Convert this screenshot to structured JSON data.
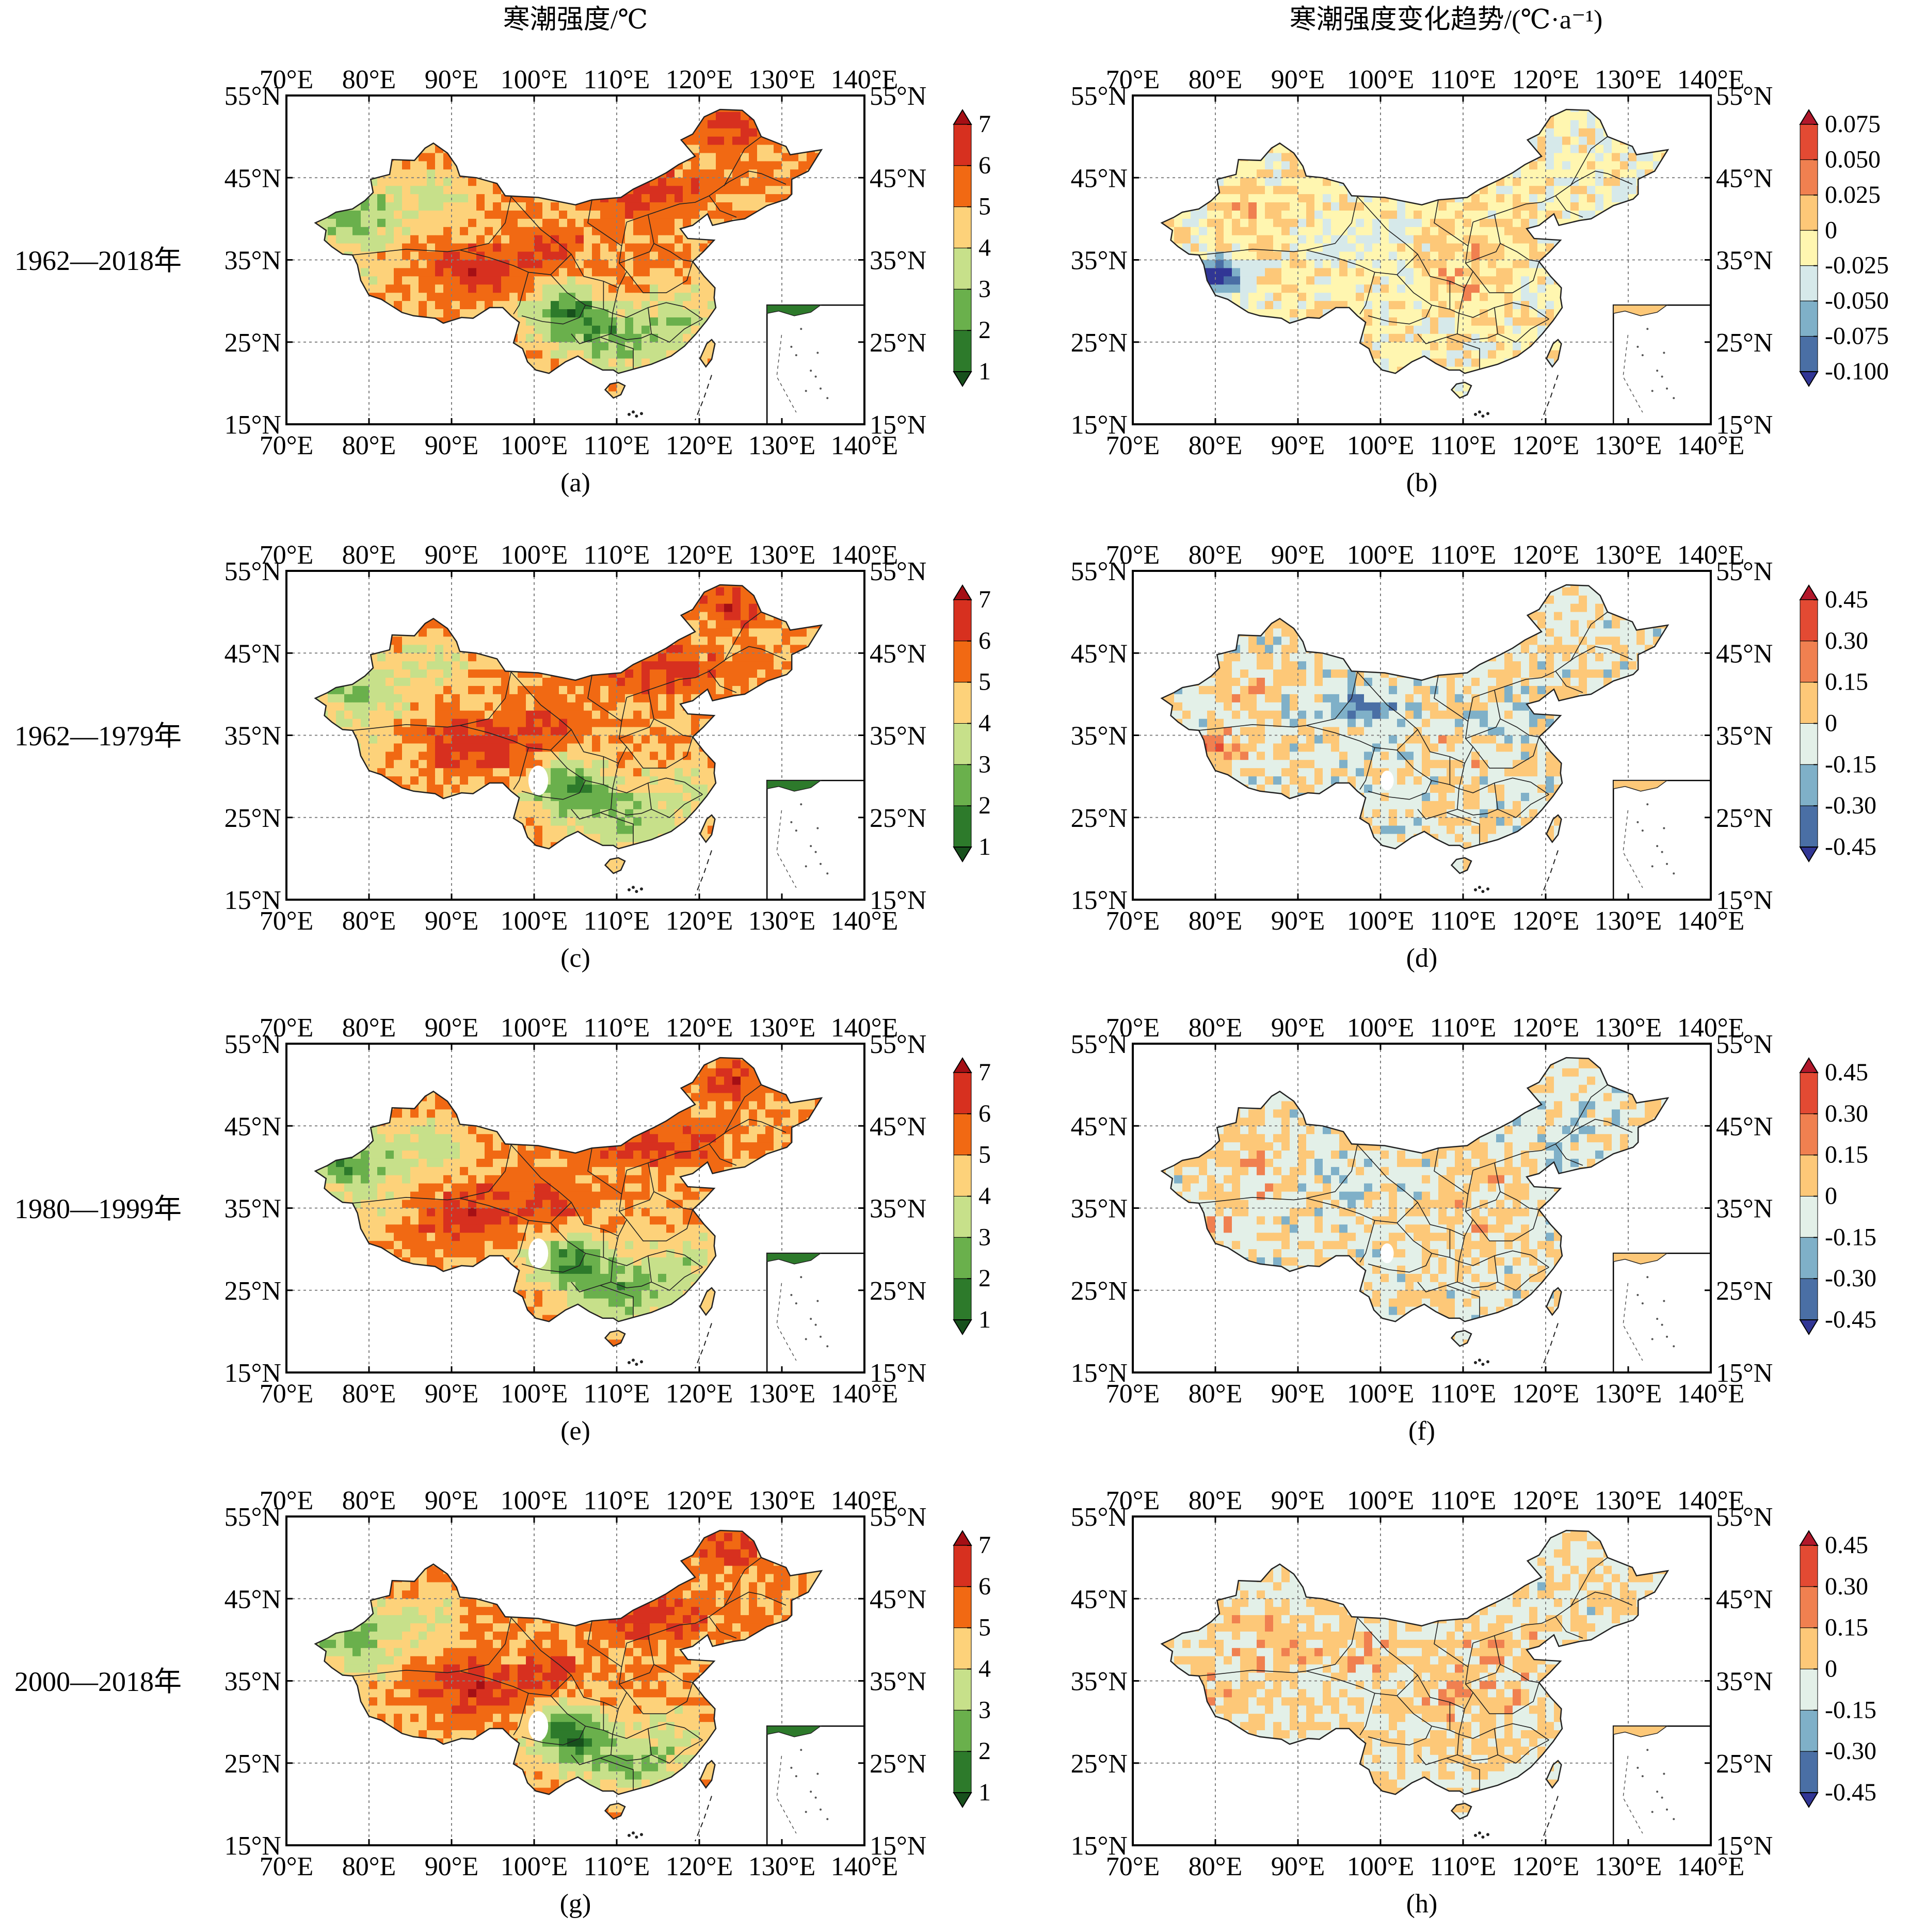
{
  "column_titles": {
    "left": "寒潮强度/℃",
    "right": "寒潮强度变化趋势/(℃·a⁻¹)"
  },
  "lon_labels": [
    "70°E",
    "80°E",
    "90°E",
    "100°E",
    "110°E",
    "120°E",
    "130°E",
    "140°E"
  ],
  "lat_labels": [
    "55°N",
    "45°N",
    "35°N",
    "25°N",
    "15°N"
  ],
  "rows": [
    {
      "period": "1962—2018年",
      "left_panel": "(a)",
      "right_panel": "(b)"
    },
    {
      "period": "1962—1979年",
      "left_panel": "(c)",
      "right_panel": "(d)"
    },
    {
      "period": "1980—1999年",
      "left_panel": "(e)",
      "right_panel": "(f)"
    },
    {
      "period": "2000—2018年",
      "left_panel": "(g)",
      "right_panel": "(h)"
    }
  ],
  "intensity_colorbar": {
    "labels": [
      "7",
      "6",
      "5",
      "4",
      "3",
      "2",
      "1"
    ],
    "colors": [
      "#a50f15",
      "#d7301f",
      "#f16913",
      "#fdd27a",
      "#c7e08a",
      "#6ab04c",
      "#2d7a2b",
      "#17501c"
    ]
  },
  "trend_colorbar_b": {
    "labels": [
      "0.075",
      "0.050",
      "0.025",
      "0",
      "-0.025",
      "-0.050",
      "-0.075",
      "-0.100"
    ],
    "colors": [
      "#b2182b",
      "#e34a33",
      "#f08050",
      "#fdc878",
      "#fff6b0",
      "#d6e9ea",
      "#7fb0c8",
      "#4a6fa5",
      "#313695"
    ]
  },
  "trend_colorbar_dfh": {
    "labels": [
      "0.45",
      "0.30",
      "0.15",
      "0",
      "-0.15",
      "-0.30",
      "-0.45"
    ],
    "colors": [
      "#b2182b",
      "#e34a33",
      "#f08050",
      "#fdc878",
      "#e3f0e8",
      "#7fb0c8",
      "#4a6fa5",
      "#313695"
    ]
  }
}
